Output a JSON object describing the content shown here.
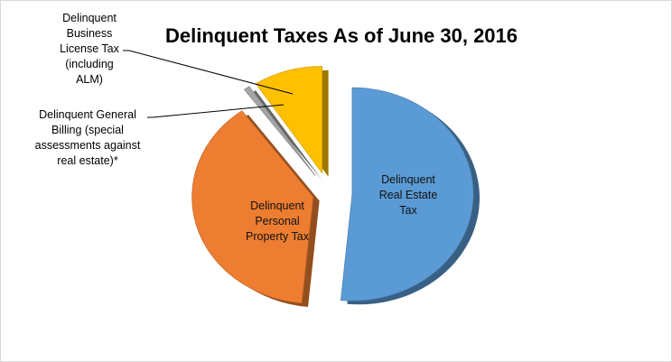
{
  "chart_data": {
    "type": "pie",
    "title": "Delinquent Taxes As of June 30, 2016",
    "colors": [
      "#5b9bd5",
      "#ed7d31",
      "#a5a5a5",
      "#ffc000"
    ],
    "slices": [
      {
        "label_lines": [
          "Delinquent",
          "Real Estate",
          "Tax"
        ],
        "value": 51.5,
        "label_position": "inside"
      },
      {
        "label_lines": [
          "Delinquent",
          "Personal",
          "Property Tax"
        ],
        "value": 38.5,
        "label_position": "inside"
      },
      {
        "label_lines": [
          "Delinquent General",
          "Billing (special",
          "assessments against",
          "real estate)*"
        ],
        "value": 0.8,
        "label_position": "outside-left"
      },
      {
        "label_lines": [
          "Delinquent",
          "Business",
          "License Tax",
          "(including",
          "ALM)"
        ],
        "value": 9.2,
        "label_position": "outside-top-left"
      }
    ]
  }
}
